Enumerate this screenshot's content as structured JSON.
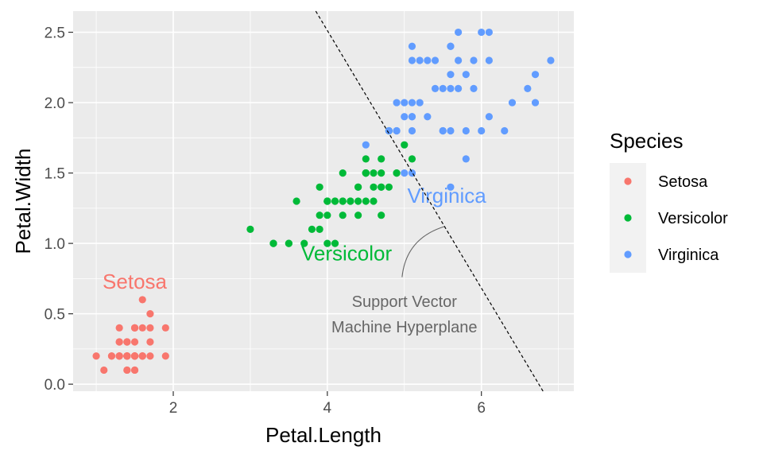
{
  "chart_data": {
    "type": "scatter",
    "title": "",
    "xlabel": "Petal.Length",
    "ylabel": "Petal.Width",
    "xlim": [
      0.7,
      7.2
    ],
    "ylim": [
      -0.05,
      2.65
    ],
    "xticks": [
      2,
      4,
      6
    ],
    "xtick_labels": [
      "2",
      "4",
      "6"
    ],
    "yticks": [
      0.0,
      0.5,
      1.0,
      1.5,
      2.0,
      2.5
    ],
    "ytick_labels": [
      "0.0",
      "0.5",
      "1.0",
      "1.5",
      "2.0",
      "2.5"
    ],
    "grid": true,
    "legend": {
      "title": "Species",
      "position": "right"
    },
    "series": [
      {
        "name": "Setosa",
        "color": "#F8766D",
        "points": [
          [
            1.4,
            0.2
          ],
          [
            1.4,
            0.2
          ],
          [
            1.3,
            0.2
          ],
          [
            1.5,
            0.2
          ],
          [
            1.4,
            0.2
          ],
          [
            1.7,
            0.4
          ],
          [
            1.4,
            0.3
          ],
          [
            1.5,
            0.2
          ],
          [
            1.4,
            0.2
          ],
          [
            1.5,
            0.1
          ],
          [
            1.5,
            0.2
          ],
          [
            1.6,
            0.2
          ],
          [
            1.4,
            0.1
          ],
          [
            1.1,
            0.1
          ],
          [
            1.2,
            0.2
          ],
          [
            1.5,
            0.4
          ],
          [
            1.3,
            0.4
          ],
          [
            1.4,
            0.3
          ],
          [
            1.7,
            0.3
          ],
          [
            1.5,
            0.3
          ],
          [
            1.7,
            0.2
          ],
          [
            1.5,
            0.4
          ],
          [
            1.0,
            0.2
          ],
          [
            1.7,
            0.5
          ],
          [
            1.9,
            0.2
          ],
          [
            1.6,
            0.2
          ],
          [
            1.6,
            0.4
          ],
          [
            1.5,
            0.2
          ],
          [
            1.4,
            0.2
          ],
          [
            1.6,
            0.2
          ],
          [
            1.6,
            0.2
          ],
          [
            1.5,
            0.4
          ],
          [
            1.5,
            0.1
          ],
          [
            1.4,
            0.2
          ],
          [
            1.5,
            0.2
          ],
          [
            1.2,
            0.2
          ],
          [
            1.3,
            0.2
          ],
          [
            1.4,
            0.1
          ],
          [
            1.3,
            0.2
          ],
          [
            1.5,
            0.2
          ],
          [
            1.3,
            0.3
          ],
          [
            1.3,
            0.3
          ],
          [
            1.3,
            0.2
          ],
          [
            1.6,
            0.6
          ],
          [
            1.9,
            0.4
          ],
          [
            1.4,
            0.3
          ],
          [
            1.6,
            0.2
          ],
          [
            1.4,
            0.2
          ],
          [
            1.5,
            0.2
          ],
          [
            1.4,
            0.2
          ]
        ]
      },
      {
        "name": "Versicolor",
        "color": "#00BA38",
        "points": [
          [
            4.7,
            1.4
          ],
          [
            4.5,
            1.5
          ],
          [
            4.9,
            1.5
          ],
          [
            4.0,
            1.3
          ],
          [
            4.6,
            1.5
          ],
          [
            4.5,
            1.3
          ],
          [
            4.7,
            1.6
          ],
          [
            3.3,
            1.0
          ],
          [
            4.6,
            1.3
          ],
          [
            3.9,
            1.4
          ],
          [
            3.5,
            1.0
          ],
          [
            4.2,
            1.5
          ],
          [
            4.0,
            1.0
          ],
          [
            4.7,
            1.4
          ],
          [
            3.6,
            1.3
          ],
          [
            4.4,
            1.4
          ],
          [
            4.5,
            1.5
          ],
          [
            4.1,
            1.0
          ],
          [
            4.5,
            1.5
          ],
          [
            3.9,
            1.1
          ],
          [
            4.8,
            1.8
          ],
          [
            4.0,
            1.3
          ],
          [
            4.9,
            1.5
          ],
          [
            4.7,
            1.2
          ],
          [
            4.3,
            1.3
          ],
          [
            4.4,
            1.4
          ],
          [
            4.8,
            1.4
          ],
          [
            5.0,
            1.7
          ],
          [
            4.5,
            1.5
          ],
          [
            3.5,
            1.0
          ],
          [
            3.8,
            1.1
          ],
          [
            3.7,
            1.0
          ],
          [
            3.9,
            1.2
          ],
          [
            5.1,
            1.6
          ],
          [
            4.5,
            1.5
          ],
          [
            4.5,
            1.6
          ],
          [
            4.7,
            1.5
          ],
          [
            4.4,
            1.3
          ],
          [
            4.1,
            1.3
          ],
          [
            4.0,
            1.3
          ],
          [
            4.4,
            1.2
          ],
          [
            4.6,
            1.4
          ],
          [
            4.0,
            1.2
          ],
          [
            3.3,
            1.0
          ],
          [
            4.2,
            1.3
          ],
          [
            4.2,
            1.2
          ],
          [
            4.2,
            1.3
          ],
          [
            4.3,
            1.3
          ],
          [
            3.0,
            1.1
          ],
          [
            4.1,
            1.3
          ]
        ]
      },
      {
        "name": "Virginica",
        "color": "#619CFF",
        "points": [
          [
            6.0,
            2.5
          ],
          [
            5.1,
            1.9
          ],
          [
            5.9,
            2.1
          ],
          [
            5.6,
            1.8
          ],
          [
            5.8,
            2.2
          ],
          [
            6.6,
            2.1
          ],
          [
            4.5,
            1.7
          ],
          [
            6.3,
            1.8
          ],
          [
            5.8,
            1.8
          ],
          [
            6.1,
            2.5
          ],
          [
            5.1,
            2.0
          ],
          [
            5.3,
            1.9
          ],
          [
            5.5,
            2.1
          ],
          [
            5.0,
            2.0
          ],
          [
            5.1,
            2.4
          ],
          [
            5.3,
            2.3
          ],
          [
            5.5,
            1.8
          ],
          [
            6.7,
            2.2
          ],
          [
            6.9,
            2.3
          ],
          [
            5.0,
            1.5
          ],
          [
            5.7,
            2.3
          ],
          [
            4.9,
            2.0
          ],
          [
            6.7,
            2.0
          ],
          [
            4.9,
            1.8
          ],
          [
            5.7,
            2.1
          ],
          [
            6.0,
            1.8
          ],
          [
            4.8,
            1.8
          ],
          [
            4.9,
            1.8
          ],
          [
            5.6,
            2.1
          ],
          [
            5.8,
            1.6
          ],
          [
            6.1,
            1.9
          ],
          [
            6.4,
            2.0
          ],
          [
            5.6,
            2.2
          ],
          [
            5.1,
            1.5
          ],
          [
            5.6,
            1.4
          ],
          [
            6.1,
            2.3
          ],
          [
            5.6,
            2.4
          ],
          [
            5.5,
            1.8
          ],
          [
            4.8,
            1.8
          ],
          [
            5.4,
            2.1
          ],
          [
            5.6,
            2.4
          ],
          [
            5.1,
            2.3
          ],
          [
            5.1,
            1.9
          ],
          [
            5.9,
            2.3
          ],
          [
            5.7,
            2.5
          ],
          [
            5.2,
            2.3
          ],
          [
            5.0,
            1.9
          ],
          [
            5.2,
            2.0
          ],
          [
            5.4,
            2.3
          ],
          [
            5.1,
            1.8
          ]
        ]
      }
    ],
    "species_labels": [
      {
        "text": "Setosa",
        "x": 1.5,
        "y": 0.68,
        "color": "#F8766D"
      },
      {
        "text": "Versicolor",
        "x": 4.25,
        "y": 0.88,
        "color": "#00BA38"
      },
      {
        "text": "Virginica",
        "x": 5.55,
        "y": 1.29,
        "color": "#619CFF"
      }
    ],
    "hyperplane": {
      "x1": 3.85,
      "y1": 2.65,
      "x2": 6.8,
      "y2": -0.05,
      "style": "dashed"
    },
    "annotation": {
      "lines": [
        "Support Vector",
        "Machine Hyperplane"
      ],
      "x": 5.0,
      "y": 0.55,
      "arrow_from": [
        4.97,
        0.76
      ],
      "arrow_to": [
        5.52,
        1.12
      ]
    }
  }
}
